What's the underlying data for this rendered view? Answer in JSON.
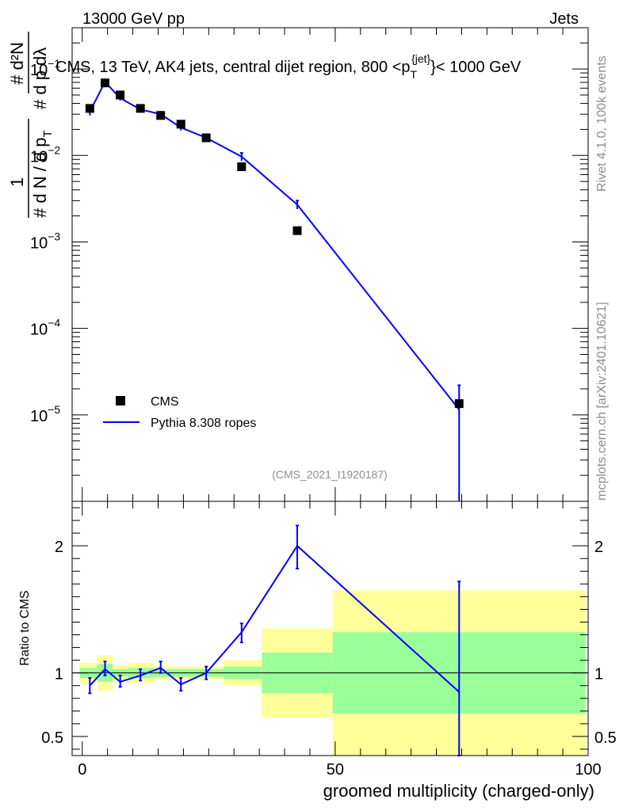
{
  "header": {
    "left": "13000 GeV pp",
    "right": "Jets"
  },
  "side_labels": {
    "rivet": "Rivet 4.1.0,  100k events",
    "mcplots": "mcplots.cern.ch [arXiv:2401.10621]"
  },
  "chart_data": {
    "type": "line",
    "title_parts": {
      "main": "CMS, 13 TeV, AK4 jets, central dijet region, 800 <p",
      "sub": "T",
      "sup": "{jet}",
      "tail": "}< 1000 GeV"
    },
    "analysis_id": "(CMS_2021_I1920187)",
    "xlabel": "groomed multiplicity (charged-only)",
    "ylabel_parts": {
      "num": "1",
      "den": "# d N / d p",
      "den_sub": "T",
      "rhs_top": "# d²N",
      "rhs_bot": "# d p  dλ",
      "rhs_bot_sub": "T"
    },
    "xlim": [
      -2,
      100
    ],
    "main_yscale": "log",
    "main_ylim": [
      1e-06,
      0.3
    ],
    "y_ticks": [
      {
        "value": 0.1,
        "base": "10",
        "exp": "−1"
      },
      {
        "value": 0.01,
        "base": "10",
        "exp": "−2"
      },
      {
        "value": 0.001,
        "base": "10",
        "exp": "−3"
      },
      {
        "value": 0.0001,
        "base": "10",
        "exp": "−4"
      },
      {
        "value": 1e-05,
        "base": "10",
        "exp": "−5"
      }
    ],
    "x_ticks": [
      {
        "value": 0,
        "label": "0"
      },
      {
        "value": 50,
        "label": "50"
      },
      {
        "value": 100,
        "label": "100"
      }
    ],
    "legend": {
      "position": "lower-left",
      "entries": [
        {
          "name": "CMS",
          "style": "marker"
        },
        {
          "name": "Pythia 8.308 ropes",
          "style": "line"
        }
      ]
    },
    "cms": {
      "name": "CMS",
      "x": [
        1.5,
        4.5,
        7.5,
        11.5,
        15.5,
        19.5,
        24.5,
        31.5,
        42.5,
        74.5
      ],
      "y": [
        0.035,
        0.069,
        0.05,
        0.035,
        0.029,
        0.023,
        0.016,
        0.0074,
        0.00135,
        1.35e-05
      ]
    },
    "pythia": {
      "name": "Pythia 8.308 ropes",
      "color": "#0000ff",
      "x": [
        1.5,
        4.5,
        7.5,
        11.5,
        15.5,
        19.5,
        24.5,
        31.5,
        42.5,
        74.5
      ],
      "y": [
        0.032,
        0.071,
        0.046,
        0.034,
        0.03,
        0.021,
        0.016,
        0.0097,
        0.0027,
        1.15e-05
      ],
      "err_lo": [
        0.029,
        0.067,
        0.043,
        0.032,
        0.028,
        0.0195,
        0.0148,
        0.0087,
        0.0024,
        1e-07
      ],
      "err_hi": [
        0.035,
        0.075,
        0.049,
        0.036,
        0.032,
        0.0225,
        0.0172,
        0.0107,
        0.003,
        2.2e-05
      ]
    },
    "ratio": {
      "ylabel": "Ratio to CMS",
      "ylim": [
        0.35,
        2.35
      ],
      "y_ticks": [
        {
          "value": 0.5,
          "label": "0.5"
        },
        {
          "value": 1,
          "label": "1"
        },
        {
          "value": 2,
          "label": "2"
        }
      ],
      "bands": [
        {
          "x0": -0.5,
          "x1": 3,
          "inner": [
            0.96,
            1.04
          ],
          "outer": [
            0.92,
            1.08
          ]
        },
        {
          "x0": 3,
          "x1": 6,
          "inner": [
            0.93,
            1.07
          ],
          "outer": [
            0.86,
            1.14
          ]
        },
        {
          "x0": 6,
          "x1": 9,
          "inner": [
            0.97,
            1.03
          ],
          "outer": [
            0.94,
            1.06
          ]
        },
        {
          "x0": 9,
          "x1": 14,
          "inner": [
            0.96,
            1.04
          ],
          "outer": [
            0.92,
            1.08
          ]
        },
        {
          "x0": 14,
          "x1": 17,
          "inner": [
            0.97,
            1.03
          ],
          "outer": [
            0.95,
            1.05
          ]
        },
        {
          "x0": 17,
          "x1": 22,
          "inner": [
            0.97,
            1.03
          ],
          "outer": [
            0.95,
            1.05
          ]
        },
        {
          "x0": 22,
          "x1": 28,
          "inner": [
            0.97,
            1.03
          ],
          "outer": [
            0.95,
            1.05
          ]
        },
        {
          "x0": 28,
          "x1": 35.5,
          "inner": [
            0.95,
            1.05
          ],
          "outer": [
            0.9,
            1.1
          ]
        },
        {
          "x0": 35.5,
          "x1": 49.5,
          "inner": [
            0.84,
            1.16
          ],
          "outer": [
            0.65,
            1.35
          ]
        },
        {
          "x0": 49.5,
          "x1": 99.5,
          "inner": [
            0.68,
            1.32
          ],
          "outer": [
            0.35,
            1.65
          ]
        }
      ],
      "pythia": {
        "x": [
          1.5,
          4.5,
          7.5,
          11.5,
          15.5,
          19.5,
          24.5,
          31.5,
          42.5,
          74.5
        ],
        "y": [
          0.9,
          1.03,
          0.93,
          0.98,
          1.04,
          0.91,
          1.0,
          1.32,
          2.0,
          0.85
        ],
        "err_lo": [
          0.84,
          0.98,
          0.89,
          0.94,
          1.0,
          0.86,
          0.95,
          1.24,
          1.82,
          0.35
        ],
        "err_hi": [
          0.96,
          1.09,
          0.98,
          1.03,
          1.09,
          0.96,
          1.05,
          1.39,
          2.16,
          1.72
        ]
      }
    }
  },
  "colors": {
    "inner_band": "#99ff99",
    "outer_band": "#ffff99",
    "mc_line": "#0000ff",
    "data_marker": "#000000"
  }
}
